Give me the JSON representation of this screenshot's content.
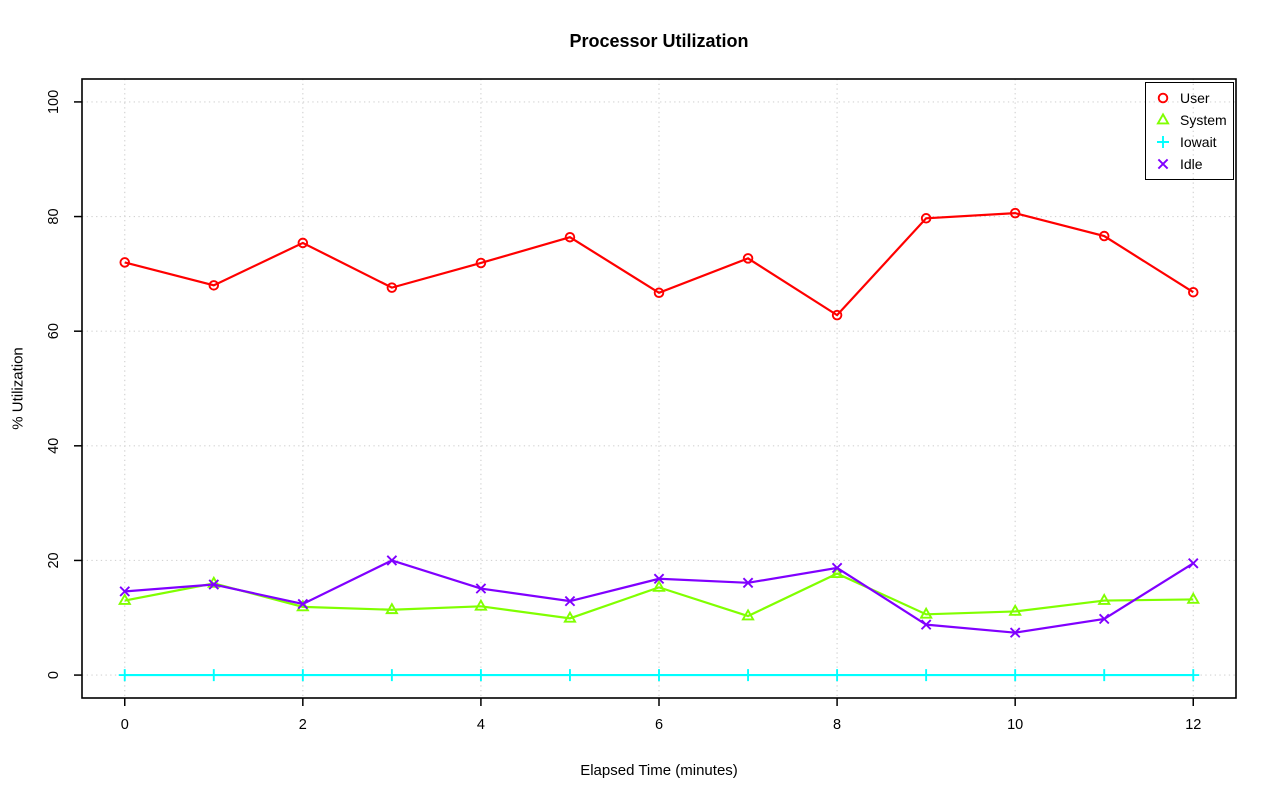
{
  "title": "Processor Utilization",
  "chart_data": {
    "type": "line",
    "title": "Processor Utilization",
    "xlabel": "Elapsed Time (minutes)",
    "ylabel": "% Utilization",
    "x": [
      0,
      1,
      2,
      3,
      4,
      5,
      6,
      7,
      8,
      9,
      10,
      11,
      12
    ],
    "xlim": [
      0,
      12
    ],
    "ylim": [
      0,
      100
    ],
    "x_ticks": [
      0,
      2,
      4,
      6,
      8,
      10,
      12
    ],
    "y_ticks": [
      0,
      20,
      40,
      60,
      80,
      100
    ],
    "grid": "dotted",
    "grid_color": "#d3d3d3",
    "background": "#ffffff",
    "legend_position": "top-right",
    "series": [
      {
        "name": "User",
        "color": "#ff0000",
        "marker": "circle",
        "values": [
          72.0,
          68.0,
          75.4,
          67.6,
          71.9,
          76.4,
          66.7,
          72.7,
          62.8,
          79.7,
          80.6,
          76.6,
          66.8
        ]
      },
      {
        "name": "System",
        "color": "#80ff00",
        "marker": "triangle",
        "values": [
          13.0,
          16.0,
          11.9,
          11.4,
          12.0,
          9.9,
          15.3,
          10.3,
          17.7,
          10.6,
          11.1,
          13.0,
          13.2
        ]
      },
      {
        "name": "Iowait",
        "color": "#00ffff",
        "marker": "plus",
        "values": [
          0,
          0,
          0,
          0,
          0,
          0,
          0,
          0,
          0,
          0,
          0,
          0,
          0
        ]
      },
      {
        "name": "Idle",
        "color": "#8000ff",
        "marker": "x",
        "values": [
          14.6,
          15.8,
          12.4,
          20.0,
          15.1,
          12.9,
          16.8,
          16.1,
          18.7,
          8.8,
          7.4,
          9.8,
          19.5
        ]
      }
    ]
  }
}
